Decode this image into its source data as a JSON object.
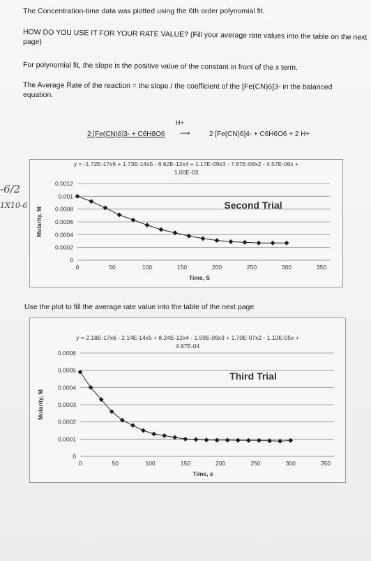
{
  "doc": {
    "line1": "The Concentration-time data was plotted using the 6th order polynomial fit.",
    "line2a": "HOW DO YOU USE IT FOR YOUR RATE VALUE? (Fill your average rate values into the table on the next",
    "line2b": "page)",
    "line3": "For polynomial fit, the slope is the positive value of the constant in front of the x term.",
    "line4a": "The Average Rate of the reaction  = the slope / the coefficient of the [Fe(CN)6]3- in the balanced",
    "line4b": "equation.",
    "h_plus": "H+",
    "reaction_left": "2 [Fe(CN)6]3- + C6H8O6",
    "reaction_arrow": "⟶",
    "reaction_right": "2 [Fe(CN)6]4- + C6H6O6 + 2 H+",
    "use_plot": "Use the plot to fill the average rate value into the table of the next page",
    "handwriting_a": "-6/2",
    "handwriting_b": "1X10-6"
  },
  "charts": [
    {
      "fit_line1": "y = -1.72E-17x6 + 1.73E-14x5 - 6.62E-12x4 + 1.17E-09x3 - 7.67E-08x2 - 4.57E-06x +",
      "fit_line2": "1.00E-03",
      "title": "Second Trial",
      "ylabel": "Molarity, M",
      "xlabel": "Time, S",
      "yticks": [
        "0.0012",
        "0.001",
        "0.0008",
        "0.0006",
        "0.0004",
        "0.0002",
        "0"
      ],
      "xticks": [
        "0",
        "50",
        "100",
        "150",
        "200",
        "250",
        "300",
        "350"
      ]
    },
    {
      "fit_line1": "y = 2.18E-17x6 - 2.14E-14x5 + 8.24E-12x4 - 1.59E-09x3 + 1.70E-07x2 - 1.10E-05x +",
      "fit_line2": "4.97E-04",
      "title": "Third Trial",
      "ylabel": "Molarity, M",
      "xlabel": "Time, s",
      "yticks": [
        "0.0006",
        "0.0005",
        "0.0004",
        "0.0003",
        "0.0002",
        "0.0001",
        "0"
      ],
      "xticks": [
        "0",
        "50",
        "100",
        "150",
        "200",
        "250",
        "300",
        "350"
      ]
    }
  ],
  "chart_data": [
    {
      "type": "scatter",
      "title": "Second Trial",
      "xlabel": "Time, S",
      "ylabel": "Molarity, M",
      "xlim": [
        0,
        350
      ],
      "ylim": [
        0,
        0.0012
      ],
      "grid": true,
      "x": [
        0,
        20,
        40,
        60,
        80,
        100,
        120,
        140,
        160,
        180,
        200,
        220,
        240,
        260,
        280,
        300
      ],
      "y": [
        0.001,
        0.00092,
        0.00082,
        0.00071,
        0.00063,
        0.00055,
        0.00048,
        0.00043,
        0.00038,
        0.00034,
        0.00031,
        0.00029,
        0.00028,
        0.00027,
        0.00027,
        0.00027
      ]
    },
    {
      "type": "scatter",
      "title": "Third Trial",
      "xlabel": "Time, s",
      "ylabel": "Molarity, M",
      "xlim": [
        0,
        350
      ],
      "ylim": [
        0,
        0.0006
      ],
      "grid": true,
      "x": [
        0,
        15,
        30,
        45,
        60,
        75,
        90,
        105,
        120,
        135,
        150,
        165,
        180,
        195,
        210,
        225,
        240,
        255,
        270,
        285,
        300
      ],
      "y": [
        0.00049,
        0.0004,
        0.00033,
        0.00026,
        0.00021,
        0.00018,
        0.00015,
        0.00013,
        0.00012,
        0.00011,
        0.0001,
        9.8e-05,
        9.5e-05,
        9.4e-05,
        9.4e-05,
        9.3e-05,
        9.2e-05,
        9.2e-05,
        9e-05,
        8.8e-05,
        9.2e-05
      ]
    }
  ]
}
